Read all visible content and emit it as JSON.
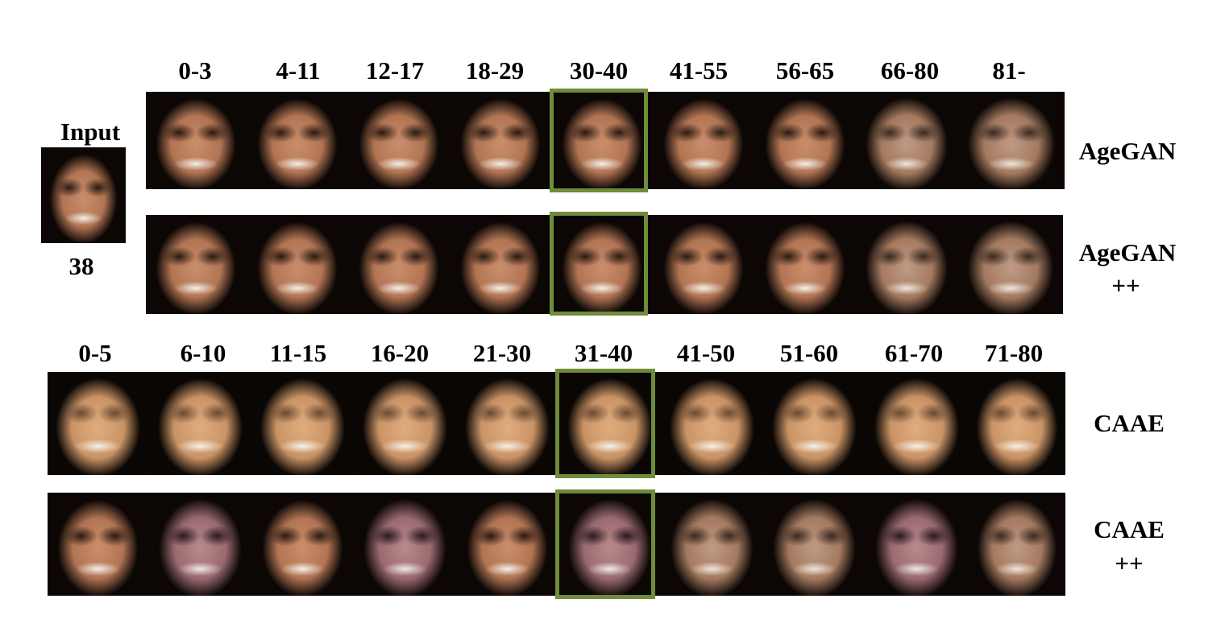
{
  "input": {
    "label": "Input",
    "age": "38"
  },
  "top_age_groups": [
    "0-3",
    "4-11",
    "12-17",
    "18-29",
    "30-40",
    "41-55",
    "56-65",
    "66-80",
    "81-"
  ],
  "bottom_age_groups": [
    "0-5",
    "6-10",
    "11-15",
    "16-20",
    "21-30",
    "31-40",
    "41-50",
    "51-60",
    "61-70",
    "71-80"
  ],
  "methods": {
    "agegan": "AgeGAN",
    "agegan_pp_line1": "AgeGAN",
    "agegan_pp_line2": "++",
    "caae": "CAAE",
    "caae_pp_line1": "CAAE",
    "caae_pp_line2": "++"
  },
  "highlight_color": "#6e8c3a"
}
